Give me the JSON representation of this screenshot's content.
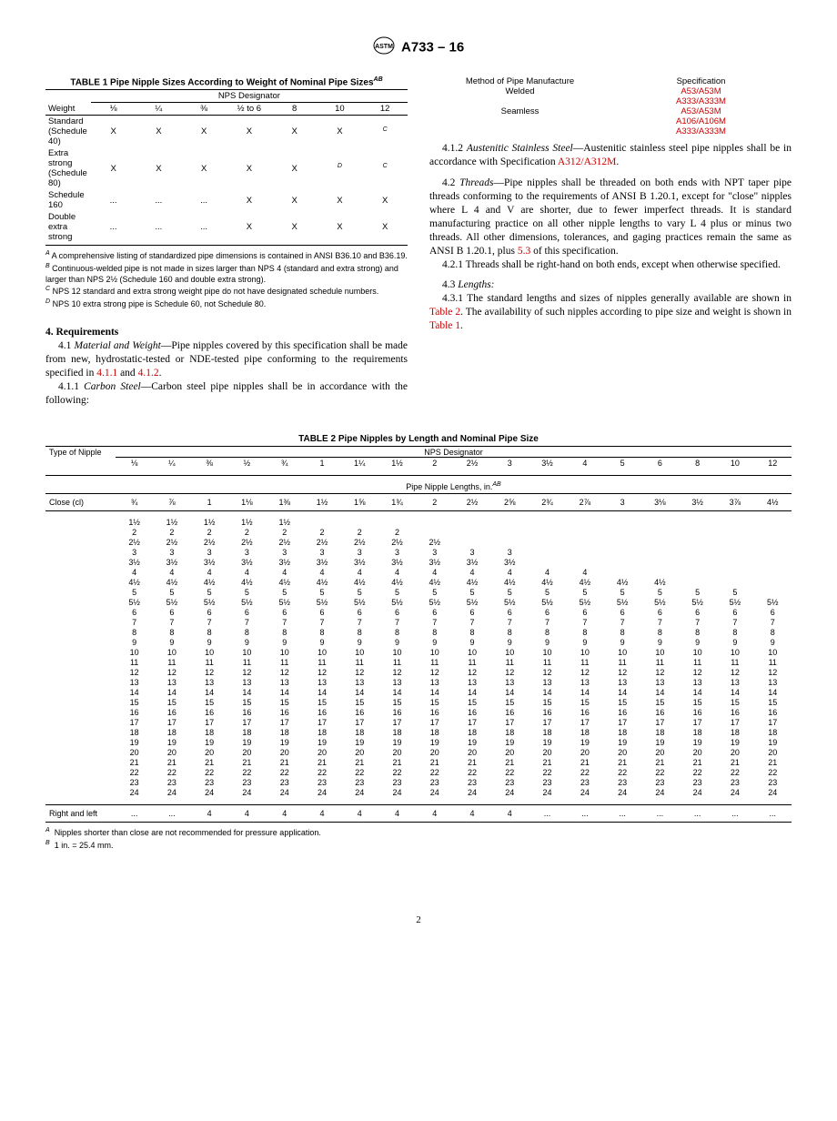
{
  "header": {
    "designation": "A733 – 16"
  },
  "table1": {
    "title": "TABLE 1 Pipe Nipple Sizes According to Weight of Nominal Pipe Sizes",
    "title_sup": "AB",
    "nps_header": "NPS Designator",
    "weight_header": "Weight",
    "headers": [
      "⅛",
      "¼",
      "⅜",
      "½ to 6",
      "8",
      "10",
      "12"
    ],
    "rows": [
      {
        "label": "Standard (Schedule 40)",
        "cells": [
          "X",
          "X",
          "X",
          "X",
          "X",
          "X",
          "C"
        ],
        "sup": [
          null,
          null,
          null,
          null,
          null,
          null,
          "C"
        ]
      },
      {
        "label": "Extra strong (Schedule 80)",
        "cells": [
          "X",
          "X",
          "X",
          "X",
          "X",
          "D",
          "C"
        ],
        "sup": [
          null,
          null,
          null,
          null,
          null,
          "D",
          "C"
        ]
      },
      {
        "label": "Schedule 160",
        "cells": [
          "...",
          "...",
          "...",
          "X",
          "X",
          "X",
          "X"
        ]
      },
      {
        "label": "Double extra strong",
        "cells": [
          "...",
          "...",
          "...",
          "X",
          "X",
          "X",
          "X"
        ]
      }
    ],
    "notes": [
      {
        "sup": "A",
        "text": "A comprehensive listing of standardized pipe dimensions is contained in ANSI B36.10 and B36.19."
      },
      {
        "sup": "B",
        "text": "Continuous-welded pipe is not made in sizes larger than NPS 4 (standard and extra strong) and larger than NPS 2½ (Schedule 160 and double extra strong)."
      },
      {
        "sup": "C",
        "text": "NPS 12 standard and extra strong weight pipe do not have designated schedule numbers."
      },
      {
        "sup": "D",
        "text": "NPS 10 extra strong pipe is Schedule 60, not Schedule 80."
      }
    ]
  },
  "sec4_title": "4. Requirements",
  "p41": "Material and Weight",
  "p41_text": "—Pipe nipples covered by this specification shall be made from new, hydrostatic-tested or NDE-tested pipe conforming to the requirements specified in ",
  "p41_links": [
    "4.1.1",
    "4.1.2"
  ],
  "p411": "Carbon Steel",
  "p411_text": "—Carbon steel pipe nipples shall be in accordance with the following:",
  "spec_table": {
    "h1": "Method of Pipe Manufacture",
    "h2": "Specification",
    "rows": [
      {
        "left": "Welded",
        "right": [
          "A53/A53M",
          "A333/A333M"
        ]
      },
      {
        "left": "Seamless",
        "right": [
          "A53/A53M",
          "A106/A106M",
          "A333/A333M"
        ]
      }
    ]
  },
  "p412": "Austenitic Stainless Steel",
  "p412_text": "—Austenitic stainless steel pipe nipples shall be in accordance with Specification ",
  "p412_link": "A312/A312M",
  "p42": "Threads",
  "p42_text": "—Pipe nipples shall be threaded on both ends with NPT taper pipe threads conforming to the requirements of ANSI B 1.20.1, except for \"close\" nipples where L 4 and V are shorter, due to fewer imperfect threads. It is standard manufacturing practice on all other nipple lengths to vary L 4 plus or minus two threads. All other dimensions, tolerances, and gaging practices remain the same as ANSI B 1.20.1, plus ",
  "p42_link": "5.3",
  "p42_tail": " of this specification.",
  "p421": "4.2.1  Threads shall be right-hand on both ends, except when otherwise specified.",
  "p43": "Lengths:",
  "p431": "4.3.1 The standard lengths and sizes of nipples generally available are shown in ",
  "p431_link1": "Table 2",
  "p431_mid": ". The availability of such nipples according to pipe size and weight is shown in ",
  "p431_link2": "Table 1",
  "table2": {
    "title": "TABLE 2 Pipe Nipples by Length and Nominal Pipe Size",
    "type_header": "Type of Nipple",
    "nps_header": "NPS Designator",
    "length_header": "Pipe Nipple Lengths, in.",
    "length_sup": "AB",
    "nps": [
      "⅛",
      "¼",
      "⅜",
      "½",
      "¾",
      "1",
      "1¼",
      "1½",
      "2",
      "2½",
      "3",
      "3½",
      "4",
      "5",
      "6",
      "8",
      "10",
      "12"
    ],
    "close_label": "Close (cl)",
    "close": [
      "¾",
      "⅞",
      "1",
      "1⅛",
      "1⅜",
      "1½",
      "1⅝",
      "1¾",
      "2",
      "2½",
      "2⅝",
      "2¾",
      "2⅞",
      "3",
      "3⅛",
      "3½",
      "3⅞",
      "4½"
    ],
    "right_label": "Right and left",
    "right": [
      "...",
      "...",
      "4",
      "4",
      "4",
      "4",
      "4",
      "4",
      "4",
      "4",
      "4",
      "...",
      "...",
      "...",
      "...",
      "...",
      "...",
      "..."
    ],
    "noteA": "Nipples shorter than close are not recommended for pressure application.",
    "noteB": "1 in. = 25.4 mm."
  },
  "pagenum": "2"
}
